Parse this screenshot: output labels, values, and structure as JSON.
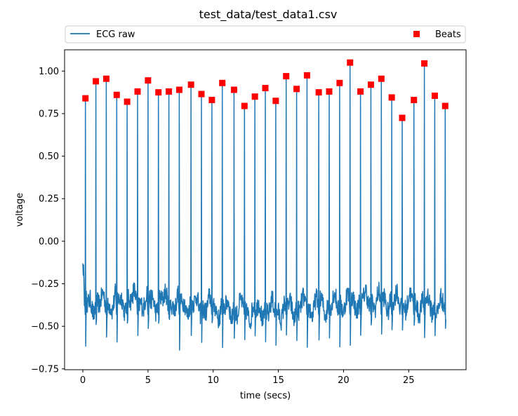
{
  "chart_data": {
    "type": "line",
    "title": "test_data/test_data1.csv",
    "xlabel": "time (secs)",
    "ylabel": "voltage",
    "xlim": [
      -1.4,
      29.4
    ],
    "ylim": [
      -0.755,
      1.125
    ],
    "xticks": [
      0,
      5,
      10,
      15,
      20,
      25
    ],
    "yticks": [
      -0.75,
      -0.5,
      -0.25,
      0.0,
      0.25,
      0.5,
      0.75,
      1.0
    ],
    "ytick_labels": [
      "−0.75",
      "−0.50",
      "−0.25",
      "0.00",
      "0.25",
      "0.50",
      "0.75",
      "1.00"
    ],
    "legend": {
      "placement": "top, above plot, expanded"
    },
    "colors": {
      "ecg": "#1f77b4",
      "beats": "#ff0000"
    },
    "series": [
      {
        "name": "ECG raw",
        "kind": "line",
        "baseline": -0.38,
        "noise": 0.06,
        "duration": 27.8
      },
      {
        "name": "Beats",
        "kind": "marker",
        "marker": "square",
        "x": [
          0.2,
          1.0,
          1.8,
          2.6,
          3.4,
          4.2,
          5.0,
          5.8,
          6.6,
          7.4,
          8.3,
          9.1,
          9.9,
          10.7,
          11.6,
          12.4,
          13.2,
          14.0,
          14.8,
          15.6,
          16.4,
          17.2,
          18.1,
          18.9,
          19.7,
          20.5,
          21.3,
          22.1,
          22.9,
          23.7,
          24.5,
          25.4,
          26.2,
          27.0,
          27.8
        ],
        "y": [
          0.84,
          0.94,
          0.955,
          0.86,
          0.82,
          0.88,
          0.945,
          0.875,
          0.88,
          0.89,
          0.92,
          0.865,
          0.83,
          0.93,
          0.89,
          0.795,
          0.85,
          0.9,
          0.825,
          0.97,
          0.895,
          0.975,
          0.875,
          0.88,
          0.93,
          1.05,
          0.88,
          0.92,
          0.955,
          0.845,
          0.725,
          0.83,
          1.045,
          0.855,
          0.795
        ]
      }
    ]
  }
}
